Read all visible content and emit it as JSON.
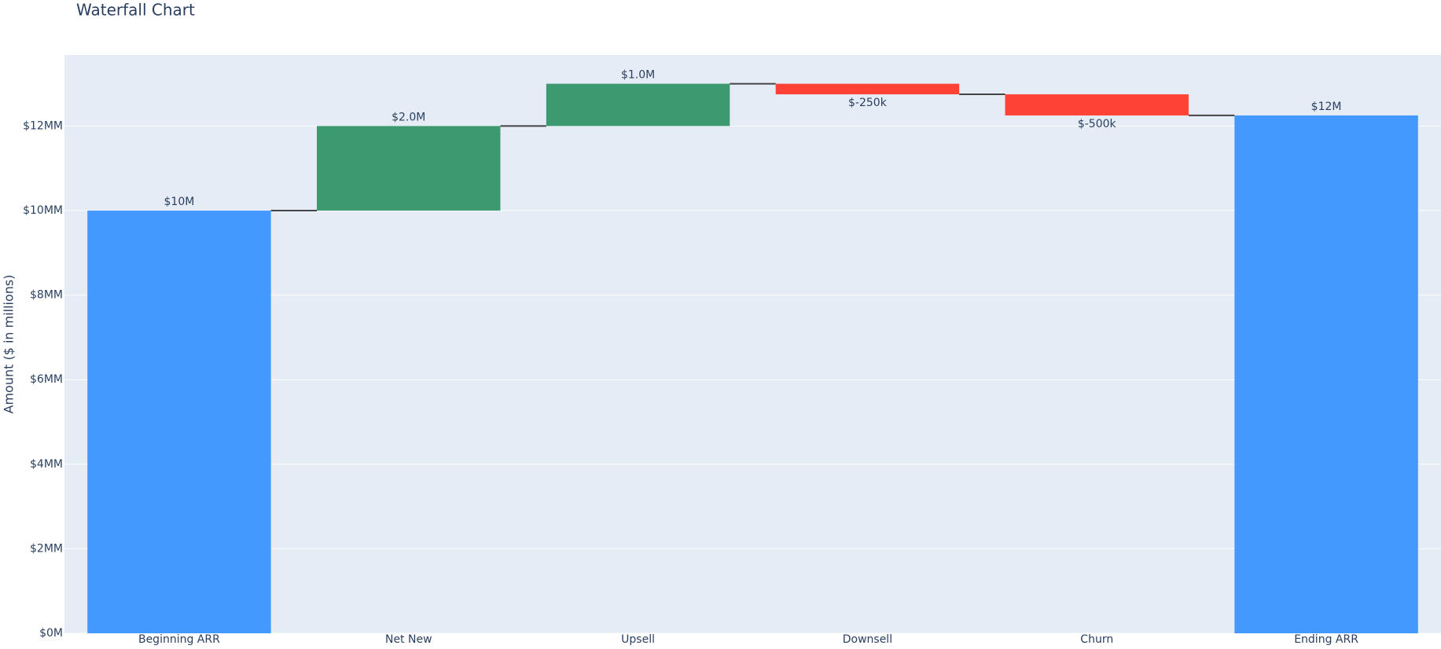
{
  "chart_data": {
    "type": "waterfall",
    "title": "Waterfall Chart",
    "y_label": "Amount ($ in millions)",
    "categories": [
      "Beginning ARR",
      "Net New",
      "Upsell",
      "Downsell",
      "Churn",
      "Ending ARR"
    ],
    "measures": [
      "absolute",
      "relative",
      "relative",
      "relative",
      "relative",
      "total"
    ],
    "values": [
      10,
      2,
      1,
      -0.25,
      -0.5,
      12.25
    ],
    "value_labels": [
      "$10M",
      "$2.0M",
      "$1.0M",
      "$-250k",
      "$-500k",
      "$12M"
    ],
    "colors": {
      "increasing": "#3d9970",
      "decreasing": "#ff4136",
      "totals": "#4499ff"
    },
    "ylim": [
      0,
      13.68
    ],
    "yticks": [
      {
        "value": 0,
        "label": "$0M"
      },
      {
        "value": 2,
        "label": "$2MM"
      },
      {
        "value": 4,
        "label": "$4MM"
      },
      {
        "value": 6,
        "label": "$6MM"
      },
      {
        "value": 8,
        "label": "$8MM"
      },
      {
        "value": 10,
        "label": "$10MM"
      },
      {
        "value": 12,
        "label": "$12MM"
      }
    ],
    "grid": true
  }
}
